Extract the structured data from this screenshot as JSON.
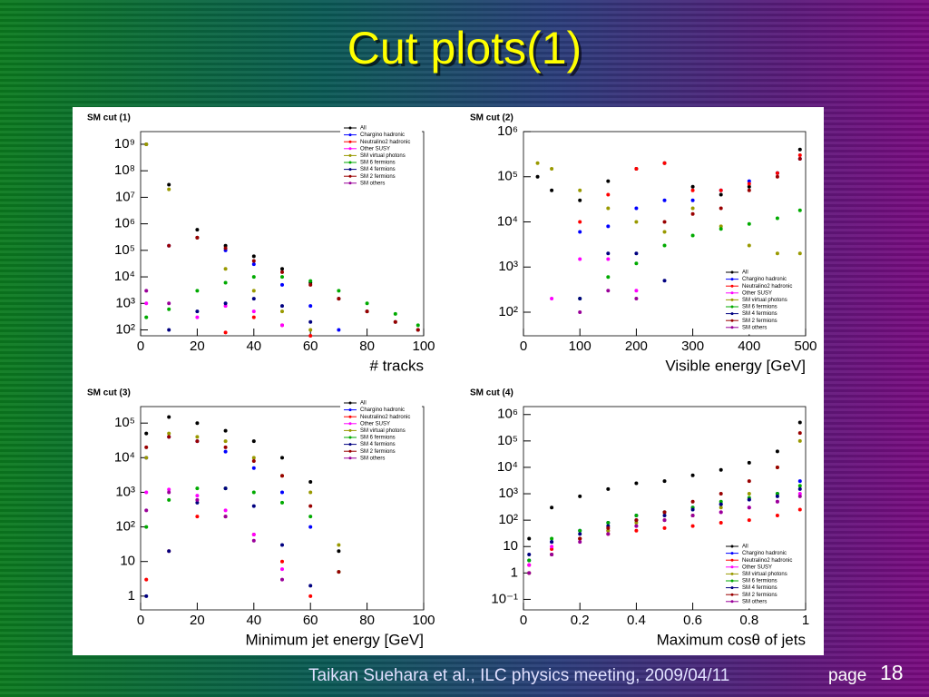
{
  "title": "Cut plots(1)",
  "chart_data": [
    {
      "type": "scatter",
      "title": "SM cut (1)",
      "xlabel": "# tracks",
      "log_y": true,
      "legend": "upper right",
      "x": [
        2,
        10,
        20,
        30,
        40,
        50,
        60,
        70,
        80,
        90,
        98
      ],
      "xlim": [
        0,
        100
      ],
      "xticks": [
        0,
        20,
        40,
        60,
        80,
        100
      ],
      "ylim": [
        60,
        3000000000
      ],
      "yticks": [
        {
          "value": 100,
          "label": "10²"
        },
        {
          "value": 1000,
          "label": "10³"
        },
        {
          "value": 10000,
          "label": "10⁴"
        },
        {
          "value": 100000,
          "label": "10⁵"
        },
        {
          "value": 1000000,
          "label": "10⁶"
        },
        {
          "value": 10000000,
          "label": "10⁷"
        },
        {
          "value": 100000000,
          "label": "10⁸"
        },
        {
          "value": 1000000000,
          "label": "10⁹"
        }
      ],
      "series": [
        {
          "name": "All",
          "color": "#000000",
          "values": [
            1000000000,
            30000000,
            600000,
            150000,
            60000,
            20000,
            6000,
            1500,
            500,
            200,
            100
          ]
        },
        {
          "name": "Chargino hadronic",
          "color": "#0000ff",
          "values": [
            null,
            150000,
            300000,
            100000,
            30000,
            5000,
            800,
            100,
            null,
            null,
            null
          ]
        },
        {
          "name": "Neutralino2 hadronic",
          "color": "#ff0000",
          "values": [
            null,
            null,
            null,
            80,
            300,
            150,
            60,
            null,
            null,
            null,
            null
          ]
        },
        {
          "name": "Other SUSY",
          "color": "#ff00ff",
          "values": [
            1000,
            null,
            300,
            800,
            500,
            150,
            null,
            null,
            null,
            null,
            null
          ]
        },
        {
          "name": "SM virtual photons",
          "color": "#999900",
          "values": [
            1000000000,
            20000000,
            300000,
            20000,
            3000,
            500,
            100,
            null,
            null,
            null,
            null
          ]
        },
        {
          "name": "SM 6 fermions",
          "color": "#00aa00",
          "values": [
            300,
            600,
            3000,
            6000,
            10000,
            10000,
            7000,
            3000,
            1000,
            400,
            150
          ]
        },
        {
          "name": "SM 4 fermions",
          "color": "#000080",
          "values": [
            null,
            100,
            500,
            1000,
            1500,
            800,
            200,
            null,
            null,
            null,
            null
          ]
        },
        {
          "name": "SM 2 fermions",
          "color": "#990000",
          "values": [
            null,
            150000,
            300000,
            120000,
            40000,
            15000,
            5000,
            1500,
            500,
            200,
            100
          ]
        },
        {
          "name": "SM others",
          "color": "#990099",
          "values": [
            3000,
            1000,
            null,
            null,
            null,
            null,
            null,
            null,
            null,
            null,
            null
          ]
        }
      ]
    },
    {
      "type": "scatter",
      "title": "SM cut (2)",
      "xlabel": "Visible energy [GeV]",
      "log_y": true,
      "legend": "lower right",
      "x": [
        25,
        50,
        100,
        150,
        200,
        250,
        300,
        350,
        400,
        450,
        490
      ],
      "xlim": [
        0,
        500
      ],
      "xticks": [
        0,
        100,
        200,
        300,
        400,
        500
      ],
      "ylim": [
        30,
        1000000
      ],
      "yticks": [
        {
          "value": 100,
          "label": "10²"
        },
        {
          "value": 1000,
          "label": "10³"
        },
        {
          "value": 10000,
          "label": "10⁴"
        },
        {
          "value": 100000,
          "label": "10⁵"
        },
        {
          "value": 1000000,
          "label": "10⁶"
        }
      ],
      "series": [
        {
          "name": "All",
          "color": "#000000",
          "values": [
            100000,
            50000,
            30000,
            80000,
            150000,
            200000,
            60000,
            40000,
            60000,
            120000,
            400000
          ]
        },
        {
          "name": "Chargino hadronic",
          "color": "#0000ff",
          "values": [
            null,
            null,
            6000,
            8000,
            20000,
            30000,
            30000,
            50000,
            80000,
            120000,
            250000
          ]
        },
        {
          "name": "Neutralino2 hadronic",
          "color": "#ff0000",
          "values": [
            null,
            null,
            10000,
            40000,
            150000,
            200000,
            50000,
            50000,
            70000,
            120000,
            300000
          ]
        },
        {
          "name": "Other SUSY",
          "color": "#ff00ff",
          "values": [
            null,
            200,
            1500,
            1500,
            300,
            null,
            null,
            null,
            null,
            null,
            null
          ]
        },
        {
          "name": "SM virtual photons",
          "color": "#999900",
          "values": [
            200000,
            150000,
            50000,
            20000,
            10000,
            6000,
            20000,
            8000,
            3000,
            2000,
            2000
          ]
        },
        {
          "name": "SM 6 fermions",
          "color": "#00aa00",
          "values": [
            null,
            null,
            200,
            600,
            1200,
            3000,
            5000,
            7000,
            9000,
            12000,
            18000
          ]
        },
        {
          "name": "SM 4 fermions",
          "color": "#000080",
          "values": [
            null,
            null,
            200,
            2000,
            2000,
            500,
            null,
            null,
            null,
            null,
            null
          ]
        },
        {
          "name": "SM 2 fermions",
          "color": "#990000",
          "values": [
            null,
            null,
            null,
            null,
            null,
            10000,
            15000,
            20000,
            50000,
            100000,
            250000
          ]
        },
        {
          "name": "SM others",
          "color": "#990099",
          "values": [
            null,
            null,
            100,
            300,
            200,
            null,
            null,
            null,
            null,
            null,
            null
          ]
        }
      ]
    },
    {
      "type": "scatter",
      "title": "SM cut (3)",
      "xlabel": "Minimum jet energy [GeV]",
      "log_y": true,
      "legend": "upper right",
      "x": [
        2,
        10,
        20,
        30,
        40,
        50,
        60,
        70
      ],
      "xlim": [
        0,
        100
      ],
      "xticks": [
        0,
        20,
        40,
        60,
        80,
        100
      ],
      "ylim": [
        0.4,
        300000
      ],
      "yticks": [
        1,
        10,
        {
          "value": 100,
          "label": "10²"
        },
        {
          "value": 1000,
          "label": "10³"
        },
        {
          "value": 10000,
          "label": "10⁴"
        },
        {
          "value": 100000,
          "label": "10⁵"
        }
      ],
      "series": [
        {
          "name": "All",
          "color": "#000000",
          "values": [
            50000,
            150000,
            100000,
            60000,
            30000,
            10000,
            2000,
            20
          ]
        },
        {
          "name": "Chargino hadronic",
          "color": "#0000ff",
          "values": [
            10000,
            40000,
            30000,
            15000,
            5000,
            1000,
            100,
            null
          ]
        },
        {
          "name": "Neutralino2 hadronic",
          "color": "#ff0000",
          "values": [
            3,
            20,
            200,
            200,
            60,
            10,
            1,
            null
          ]
        },
        {
          "name": "Other SUSY",
          "color": "#ff00ff",
          "values": [
            1000,
            1200,
            800,
            300,
            60,
            6,
            null,
            null
          ]
        },
        {
          "name": "SM virtual photons",
          "color": "#999900",
          "values": [
            10000,
            50000,
            40000,
            30000,
            10000,
            3000,
            1000,
            30
          ]
        },
        {
          "name": "SM 6 fermions",
          "color": "#00aa00",
          "values": [
            100,
            600,
            1300,
            1300,
            1000,
            500,
            200,
            5
          ]
        },
        {
          "name": "SM 4 fermions",
          "color": "#000080",
          "values": [
            1,
            20,
            500,
            1300,
            400,
            30,
            2,
            null
          ]
        },
        {
          "name": "SM 2 fermions",
          "color": "#990000",
          "values": [
            20000,
            40000,
            30000,
            20000,
            8000,
            3000,
            400,
            5
          ]
        },
        {
          "name": "SM others",
          "color": "#990099",
          "values": [
            300,
            1000,
            600,
            200,
            40,
            3,
            null,
            null
          ]
        }
      ]
    },
    {
      "type": "scatter",
      "title": "SM cut (4)",
      "xlabel": "Maximum cosθ of jets",
      "log_y": true,
      "legend": "lower right",
      "x": [
        0.02,
        0.1,
        0.2,
        0.3,
        0.4,
        0.5,
        0.6,
        0.7,
        0.8,
        0.9,
        0.98
      ],
      "xlim": [
        0,
        1
      ],
      "xticks": [
        0,
        0.2,
        0.4,
        0.6,
        0.8,
        1
      ],
      "ylim": [
        0.04,
        2000000
      ],
      "yticks": [
        {
          "value": 0.1,
          "label": "10⁻¹"
        },
        1,
        10,
        {
          "value": 100,
          "label": "10²"
        },
        {
          "value": 1000,
          "label": "10³"
        },
        {
          "value": 10000,
          "label": "10⁴"
        },
        {
          "value": 100000,
          "label": "10⁵"
        },
        {
          "value": 1000000,
          "label": "10⁶"
        }
      ],
      "series": [
        {
          "name": "All",
          "color": "#000000",
          "values": [
            20,
            300,
            800,
            1500,
            2500,
            3000,
            5000,
            8000,
            15000,
            40000,
            500000
          ]
        },
        {
          "name": "Chargino hadronic",
          "color": "#0000ff",
          "values": [
            3,
            15,
            40,
            80,
            150,
            200,
            300,
            400,
            600,
            1000,
            3000
          ]
        },
        {
          "name": "Neutralino2 hadronic",
          "color": "#ff0000",
          "values": [
            2,
            8,
            20,
            30,
            40,
            50,
            60,
            80,
            100,
            150,
            250
          ]
        },
        {
          "name": "Other SUSY",
          "color": "#ff00ff",
          "values": [
            2,
            10,
            20,
            40,
            60,
            100,
            150,
            200,
            300,
            500,
            1000
          ]
        },
        {
          "name": "SM virtual photons",
          "color": "#999900",
          "values": [
            1,
            5,
            20,
            40,
            80,
            100,
            150,
            300,
            1000,
            10000,
            100000
          ]
        },
        {
          "name": "SM 6 fermions",
          "color": "#00aa00",
          "values": [
            3,
            20,
            40,
            80,
            150,
            200,
            300,
            500,
            700,
            1000,
            2000
          ]
        },
        {
          "name": "SM 4 fermions",
          "color": "#000080",
          "values": [
            5,
            15,
            30,
            60,
            100,
            150,
            250,
            400,
            600,
            800,
            1500
          ]
        },
        {
          "name": "SM 2 fermions",
          "color": "#990000",
          "values": [
            1,
            5,
            20,
            50,
            100,
            200,
            500,
            1000,
            3000,
            10000,
            200000
          ]
        },
        {
          "name": "SM others",
          "color": "#990099",
          "values": [
            1,
            5,
            15,
            30,
            60,
            100,
            150,
            200,
            300,
            500,
            800
          ]
        }
      ]
    }
  ],
  "footer": {
    "citation": "Taikan Suehara et al., ILC physics meeting, 2009/04/11",
    "page_label": "page",
    "page_number": "18"
  }
}
